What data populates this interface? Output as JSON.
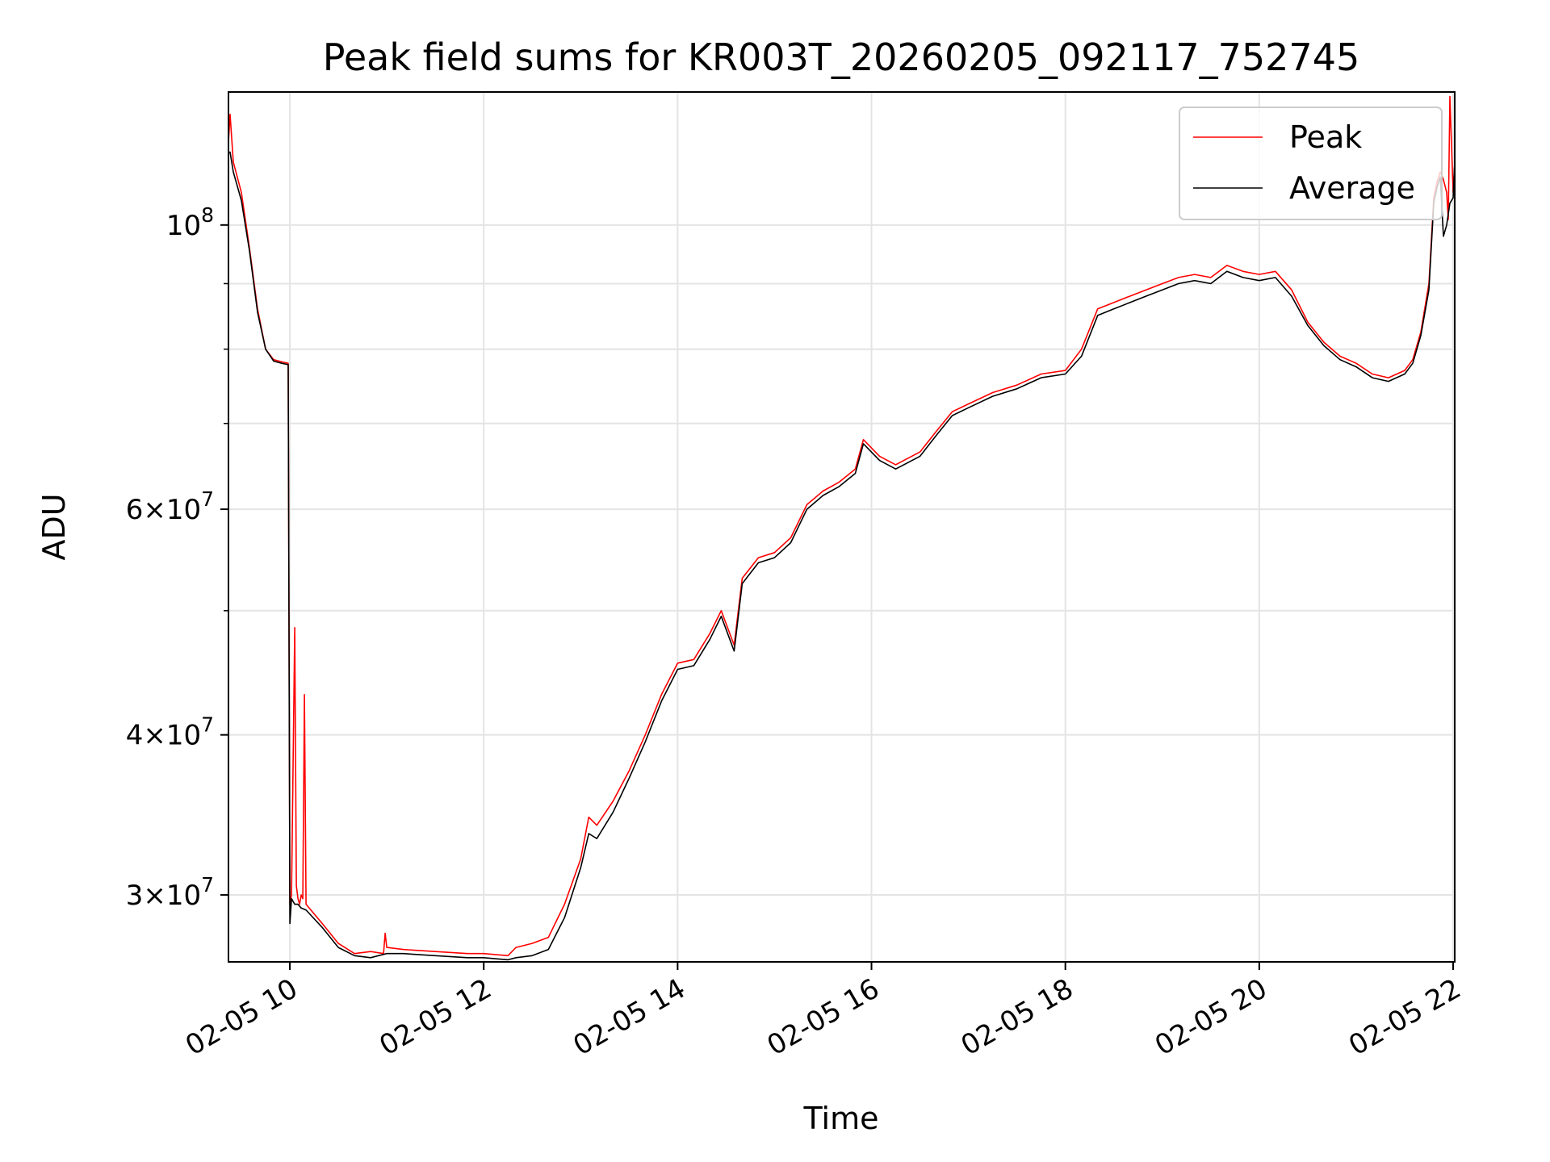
{
  "chart_data": {
    "type": "line",
    "title": "Peak field sums for KR003T_20260205_092117_752745",
    "xlabel": "Time",
    "ylabel": "ADU",
    "y_scale": "log",
    "xlim": [
      "02-05 09:22",
      "02-05 22:01"
    ],
    "ylim": [
      26600000,
      127000000
    ],
    "grid": true,
    "legend_position": "top-right",
    "x_ticks": [
      "02-05 10",
      "02-05 12",
      "02-05 14",
      "02-05 16",
      "02-05 18",
      "02-05 20",
      "02-05 22"
    ],
    "y_major_ticks": [
      {
        "value": 30000000,
        "mantissa": "3",
        "exp": "7"
      },
      {
        "value": 40000000,
        "mantissa": "4",
        "exp": "7"
      },
      {
        "value": 60000000,
        "mantissa": "6",
        "exp": "7"
      },
      {
        "value": 100000000,
        "mantissa": "",
        "exp": "8"
      }
    ],
    "y_minor_ticks": [
      50000000,
      70000000,
      80000000,
      90000000
    ],
    "series": [
      {
        "name": "Peak",
        "color": "#ff0000",
        "x": [
          "02-05 09:22",
          "02-05 09:23",
          "02-05 09:25",
          "02-05 09:30",
          "02-05 09:35",
          "02-05 09:40",
          "02-05 09:45",
          "02-05 09:50",
          "02-05 09:55",
          "02-05 09:59",
          "02-05 10:00",
          "02-05 10:01",
          "02-05 10:03",
          "02-05 10:04",
          "02-05 10:05",
          "02-05 10:06",
          "02-05 10:07",
          "02-05 10:08",
          "02-05 10:09",
          "02-05 10:10",
          "02-05 10:20",
          "02-05 10:30",
          "02-05 10:40",
          "02-05 10:50",
          "02-05 10:58",
          "02-05 10:59",
          "02-05 11:00",
          "02-05 11:10",
          "02-05 11:30",
          "02-05 11:50",
          "02-05 12:00",
          "02-05 12:15",
          "02-05 12:20",
          "02-05 12:30",
          "02-05 12:40",
          "02-05 12:50",
          "02-05 13:00",
          "02-05 13:05",
          "02-05 13:10",
          "02-05 13:20",
          "02-05 13:30",
          "02-05 13:40",
          "02-05 13:50",
          "02-05 14:00",
          "02-05 14:10",
          "02-05 14:20",
          "02-05 14:27",
          "02-05 14:35",
          "02-05 14:40",
          "02-05 14:50",
          "02-05 15:00",
          "02-05 15:10",
          "02-05 15:20",
          "02-05 15:30",
          "02-05 15:40",
          "02-05 15:50",
          "02-05 15:55",
          "02-05 16:05",
          "02-05 16:15",
          "02-05 16:20",
          "02-05 16:30",
          "02-05 16:40",
          "02-05 16:50",
          "02-05 17:00",
          "02-05 17:15",
          "02-05 17:30",
          "02-05 17:45",
          "02-05 18:00",
          "02-05 18:10",
          "02-05 18:20",
          "02-05 18:30",
          "02-05 18:40",
          "02-05 18:50",
          "02-05 19:00",
          "02-05 19:10",
          "02-05 19:20",
          "02-05 19:30",
          "02-05 19:40",
          "02-05 19:50",
          "02-05 20:00",
          "02-05 20:10",
          "02-05 20:20",
          "02-05 20:30",
          "02-05 20:40",
          "02-05 20:50",
          "02-05 21:00",
          "02-05 21:10",
          "02-05 21:20",
          "02-05 21:30",
          "02-05 21:35",
          "02-05 21:40",
          "02-05 21:45",
          "02-05 21:48",
          "02-05 21:50",
          "02-05 21:52",
          "02-05 21:54",
          "02-05 21:56",
          "02-05 21:57",
          "02-05 21:58",
          "02-05 22:00",
          "02-05 22:01"
        ],
        "y": [
          116000000,
          122000000,
          112000000,
          106000000,
          96000000,
          86000000,
          80000000,
          78500000,
          78200000,
          78000000,
          29500000,
          30000000,
          48500000,
          30500000,
          29800000,
          29500000,
          30000000,
          29800000,
          43000000,
          29500000,
          28500000,
          27500000,
          27000000,
          27100000,
          27000000,
          28000000,
          27300000,
          27200000,
          27100000,
          27000000,
          27000000,
          26900000,
          27300000,
          27500000,
          27800000,
          29500000,
          32000000,
          34500000,
          34000000,
          35500000,
          37500000,
          40000000,
          43000000,
          45500000,
          45800000,
          48000000,
          50000000,
          47000000,
          53000000,
          55000000,
          55500000,
          57000000,
          60500000,
          62000000,
          63000000,
          64500000,
          68000000,
          66000000,
          65000000,
          65500000,
          66500000,
          69000000,
          71500000,
          72500000,
          74000000,
          75000000,
          76500000,
          77000000,
          80000000,
          86000000,
          87000000,
          88000000,
          89000000,
          90000000,
          91000000,
          91500000,
          91000000,
          93000000,
          92000000,
          91500000,
          92000000,
          89000000,
          84000000,
          81000000,
          79000000,
          78000000,
          76500000,
          76000000,
          77000000,
          78500000,
          82500000,
          90000000,
          105000000,
          108000000,
          110000000,
          108500000,
          106000000,
          101000000,
          126000000,
          106000000,
          112000000
        ]
      },
      {
        "name": "Average",
        "color": "#000000",
        "x": [
          "02-05 09:22",
          "02-05 09:23",
          "02-05 09:25",
          "02-05 09:30",
          "02-05 09:35",
          "02-05 09:40",
          "02-05 09:45",
          "02-05 09:50",
          "02-05 09:55",
          "02-05 09:59",
          "02-05 10:00",
          "02-05 10:01",
          "02-05 10:03",
          "02-05 10:05",
          "02-05 10:07",
          "02-05 10:10",
          "02-05 10:20",
          "02-05 10:30",
          "02-05 10:40",
          "02-05 10:50",
          "02-05 11:00",
          "02-05 11:10",
          "02-05 11:30",
          "02-05 11:50",
          "02-05 12:00",
          "02-05 12:15",
          "02-05 12:20",
          "02-05 12:30",
          "02-05 12:40",
          "02-05 12:50",
          "02-05 13:00",
          "02-05 13:05",
          "02-05 13:10",
          "02-05 13:20",
          "02-05 13:30",
          "02-05 13:40",
          "02-05 13:50",
          "02-05 14:00",
          "02-05 14:10",
          "02-05 14:20",
          "02-05 14:27",
          "02-05 14:35",
          "02-05 14:40",
          "02-05 14:50",
          "02-05 15:00",
          "02-05 15:10",
          "02-05 15:20",
          "02-05 15:30",
          "02-05 15:40",
          "02-05 15:50",
          "02-05 15:55",
          "02-05 16:05",
          "02-05 16:15",
          "02-05 16:20",
          "02-05 16:30",
          "02-05 16:40",
          "02-05 16:50",
          "02-05 17:00",
          "02-05 17:15",
          "02-05 17:30",
          "02-05 17:45",
          "02-05 18:00",
          "02-05 18:10",
          "02-05 18:20",
          "02-05 18:30",
          "02-05 18:40",
          "02-05 18:50",
          "02-05 19:00",
          "02-05 19:10",
          "02-05 19:20",
          "02-05 19:30",
          "02-05 19:40",
          "02-05 19:50",
          "02-05 20:00",
          "02-05 20:10",
          "02-05 20:20",
          "02-05 20:30",
          "02-05 20:40",
          "02-05 20:50",
          "02-05 21:00",
          "02-05 21:10",
          "02-05 21:20",
          "02-05 21:30",
          "02-05 21:35",
          "02-05 21:40",
          "02-05 21:45",
          "02-05 21:48",
          "02-05 21:50",
          "02-05 21:52",
          "02-05 21:54",
          "02-05 21:56",
          "02-05 21:58",
          "02-05 22:00",
          "02-05 22:01"
        ],
        "y": [
          114000000,
          114000000,
          110000000,
          104500000,
          95500000,
          85500000,
          80000000,
          78300000,
          78000000,
          77800000,
          28500000,
          29800000,
          29500000,
          29500000,
          29300000,
          29200000,
          28300000,
          27300000,
          26900000,
          26800000,
          27000000,
          27000000,
          26900000,
          26800000,
          26800000,
          26700000,
          26800000,
          26900000,
          27200000,
          28800000,
          31500000,
          33500000,
          33200000,
          34800000,
          37000000,
          39500000,
          42500000,
          45000000,
          45300000,
          47500000,
          49500000,
          46500000,
          52500000,
          54500000,
          55000000,
          56500000,
          60000000,
          61500000,
          62500000,
          64000000,
          67500000,
          65500000,
          64500000,
          65000000,
          66000000,
          68500000,
          71000000,
          72000000,
          73500000,
          74500000,
          76000000,
          76500000,
          79000000,
          85000000,
          86000000,
          87000000,
          88000000,
          89000000,
          90000000,
          90500000,
          90000000,
          92000000,
          91000000,
          90500000,
          91000000,
          88000000,
          83500000,
          80500000,
          78500000,
          77500000,
          76000000,
          75500000,
          76500000,
          78000000,
          82000000,
          89000000,
          104000000,
          107000000,
          109000000,
          98000000,
          100000000,
          104000000,
          105000000,
          112000000
        ]
      }
    ]
  }
}
